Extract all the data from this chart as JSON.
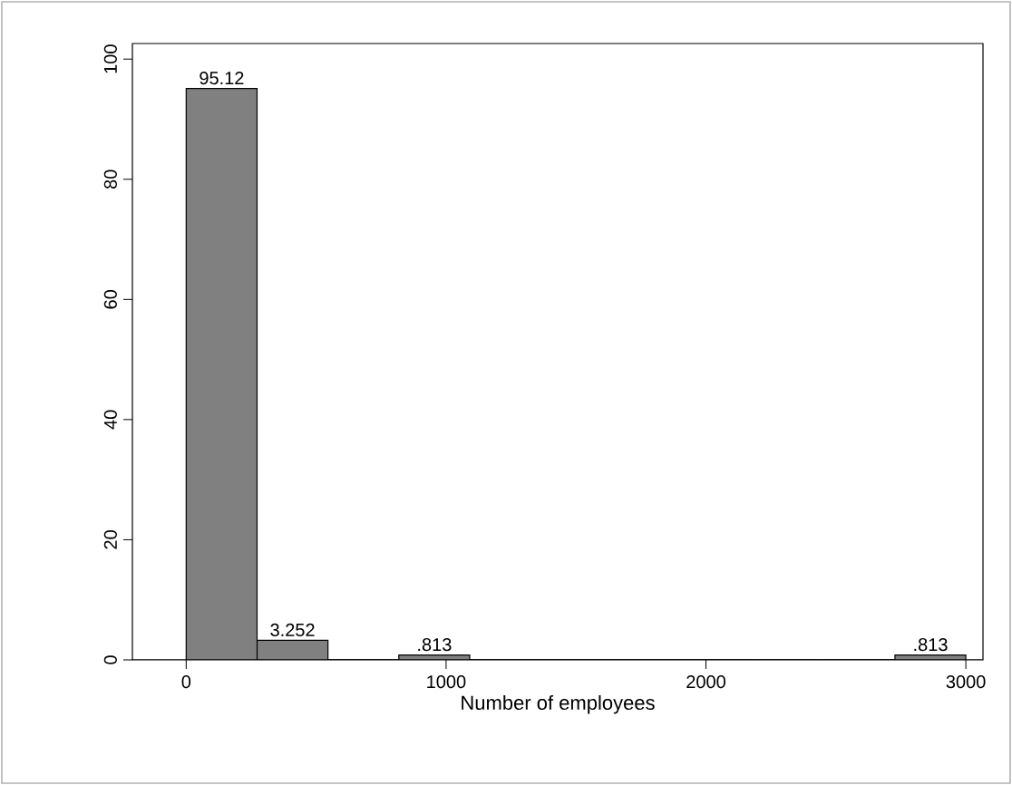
{
  "chart_data": {
    "type": "histogram",
    "xlabel": "Number of employees",
    "bins": [
      0,
      272.7,
      545.5,
      818.2,
      1090.9,
      1363.6,
      1636.4,
      1909.1,
      2181.8,
      2454.5,
      2727.3,
      3000
    ],
    "values": [
      95.12,
      3.252,
      0,
      0.813,
      0,
      0,
      0,
      0,
      0,
      0,
      0.813
    ],
    "value_labels": [
      "95.12",
      "3.252",
      null,
      ".813",
      null,
      null,
      null,
      null,
      null,
      null,
      ".813"
    ],
    "color": "#808080",
    "xlim": [
      -207,
      3066
    ],
    "ylim": [
      0,
      102.6
    ],
    "xticks": [
      0,
      1000,
      2000,
      3000
    ],
    "yticks": [
      0,
      20,
      40,
      60,
      80,
      100
    ],
    "grid": false
  }
}
